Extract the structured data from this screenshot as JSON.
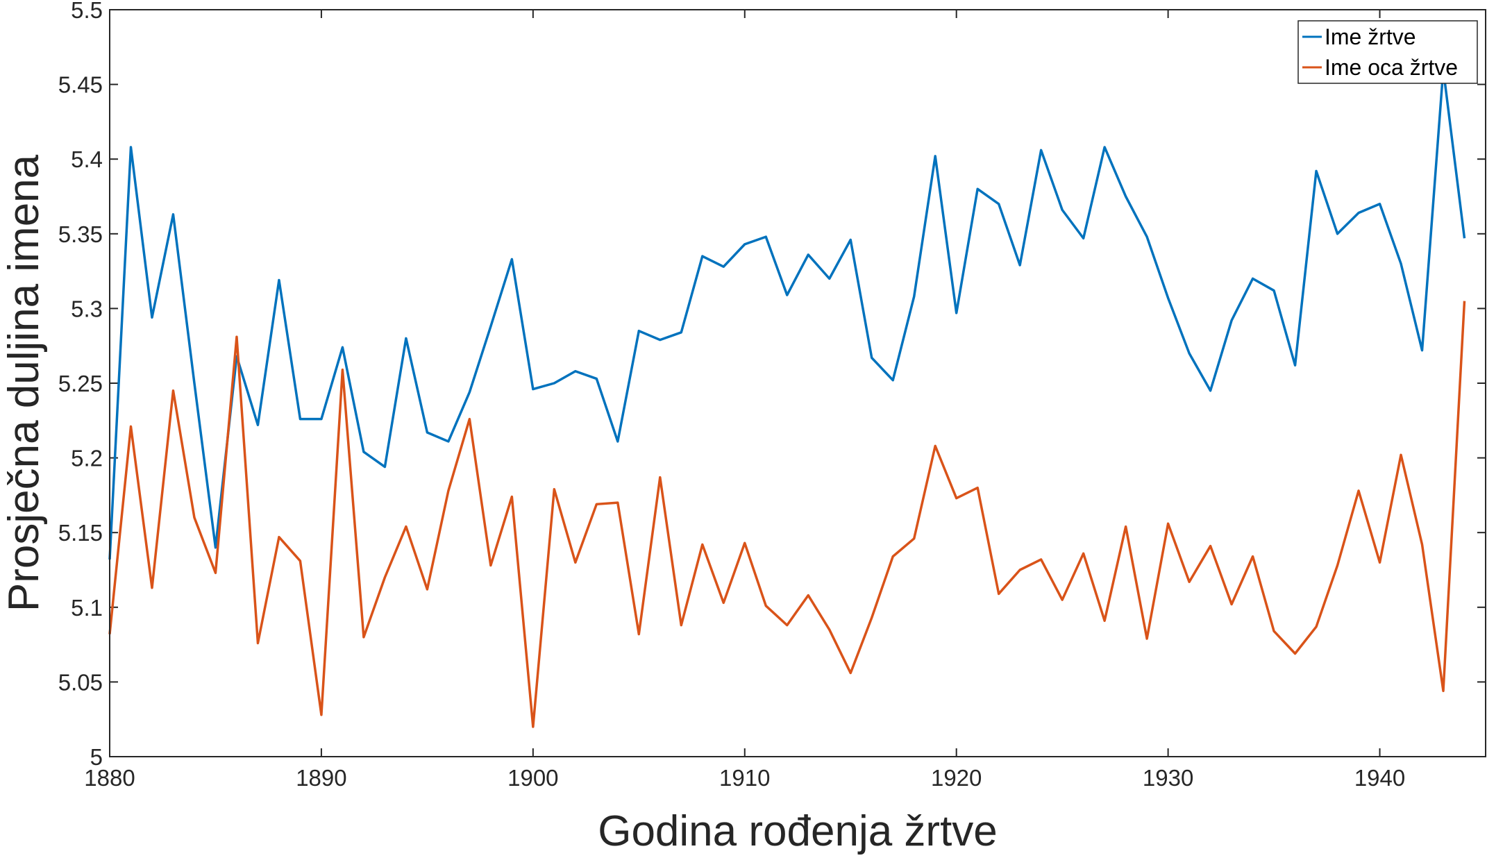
{
  "chart_data": {
    "type": "line",
    "title": "",
    "xlabel": "Godina rođenja žrtve",
    "ylabel": "Prosječna duljina imena",
    "xlim": [
      1880,
      1945
    ],
    "ylim": [
      5,
      5.5
    ],
    "grid": false,
    "legend_position": "top-right",
    "xticks": [
      1880,
      1890,
      1900,
      1910,
      1920,
      1930,
      1940
    ],
    "xtick_labels": [
      "1880",
      "1890",
      "1900",
      "1910",
      "1920",
      "1930",
      "1940"
    ],
    "yticks": [
      5,
      5.05,
      5.1,
      5.15,
      5.2,
      5.25,
      5.3,
      5.35,
      5.4,
      5.45,
      5.5
    ],
    "ytick_labels": [
      "5",
      "5.05",
      "5.1",
      "5.15",
      "5.2",
      "5.25",
      "5.3",
      "5.35",
      "5.4",
      "5.45",
      "5.5"
    ],
    "x_start": 1880,
    "series": [
      {
        "name": "Ime žrtve",
        "color": "#0072BD",
        "values": [
          5.132,
          5.408,
          5.294,
          5.363,
          5.25,
          5.14,
          5.268,
          5.222,
          5.319,
          5.226,
          5.226,
          5.274,
          5.204,
          5.194,
          5.28,
          5.217,
          5.211,
          5.244,
          5.288,
          5.333,
          5.246,
          5.25,
          5.258,
          5.253,
          5.211,
          5.285,
          5.279,
          5.284,
          5.335,
          5.328,
          5.343,
          5.348,
          5.309,
          5.336,
          5.32,
          5.346,
          5.267,
          5.252,
          5.308,
          5.402,
          5.297,
          5.38,
          5.37,
          5.329,
          5.406,
          5.366,
          5.347,
          5.408,
          5.375,
          5.348,
          5.307,
          5.27,
          5.245,
          5.292,
          5.32,
          5.312,
          5.262,
          5.392,
          5.35,
          5.364,
          5.37,
          5.33,
          5.272,
          5.46,
          5.347
        ]
      },
      {
        "name": "Ime oca žrtve",
        "color": "#D95319",
        "values": [
          5.082,
          5.221,
          5.113,
          5.245,
          5.16,
          5.123,
          5.281,
          5.076,
          5.147,
          5.131,
          5.028,
          5.259,
          5.08,
          5.12,
          5.154,
          5.112,
          5.178,
          5.226,
          5.128,
          5.174,
          5.02,
          5.179,
          5.13,
          5.169,
          5.17,
          5.082,
          5.187,
          5.088,
          5.142,
          5.103,
          5.143,
          5.101,
          5.088,
          5.108,
          5.085,
          5.056,
          5.093,
          5.134,
          5.146,
          5.208,
          5.173,
          5.18,
          5.109,
          5.125,
          5.132,
          5.105,
          5.136,
          5.091,
          5.154,
          5.079,
          5.156,
          5.117,
          5.141,
          5.102,
          5.134,
          5.084,
          5.069,
          5.087,
          5.128,
          5.178,
          5.13,
          5.202,
          5.142,
          5.044,
          5.305
        ]
      }
    ]
  }
}
